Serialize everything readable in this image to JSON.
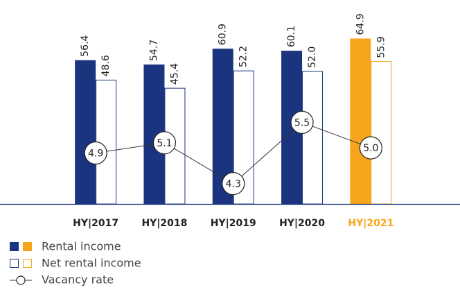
{
  "chart_data": {
    "type": "bar",
    "categories": [
      "HY|2017",
      "HY|2018",
      "HY|2019",
      "HY|2020",
      "HY|2021"
    ],
    "category_colors": [
      "#222222",
      "#222222",
      "#222222",
      "#222222",
      "#f7a51c"
    ],
    "series": [
      {
        "name": "Rental income",
        "style": "filled",
        "colors": [
          "#1b3480",
          "#1b3480",
          "#1b3480",
          "#1b3480",
          "#f7a51c"
        ],
        "values": [
          56.4,
          54.7,
          60.9,
          60.1,
          64.9
        ],
        "value_labels": [
          "56.4",
          "54.7",
          "60.9",
          "60.1",
          "64.9"
        ]
      },
      {
        "name": "Net rental income",
        "style": "outline",
        "colors": [
          "#1b3480",
          "#1b3480",
          "#1b3480",
          "#1b3480",
          "#f7a51c"
        ],
        "values": [
          48.6,
          45.4,
          52.2,
          52.0,
          55.9
        ],
        "value_labels": [
          "48.6",
          "45.4",
          "52.2",
          "52.0",
          "55.9"
        ]
      },
      {
        "name": "Vacancy rate",
        "type": "line",
        "axis": "y2",
        "color": "#333333",
        "values": [
          4.9,
          5.1,
          4.3,
          5.5,
          5.0
        ],
        "value_labels": [
          "4.9",
          "5.1",
          "4.3",
          "5.5",
          "5.0"
        ]
      }
    ],
    "ylim": [
      0,
      80
    ],
    "y2lim": [
      3.9,
      7.9
    ],
    "grid": false,
    "legend": "bottom-left"
  }
}
